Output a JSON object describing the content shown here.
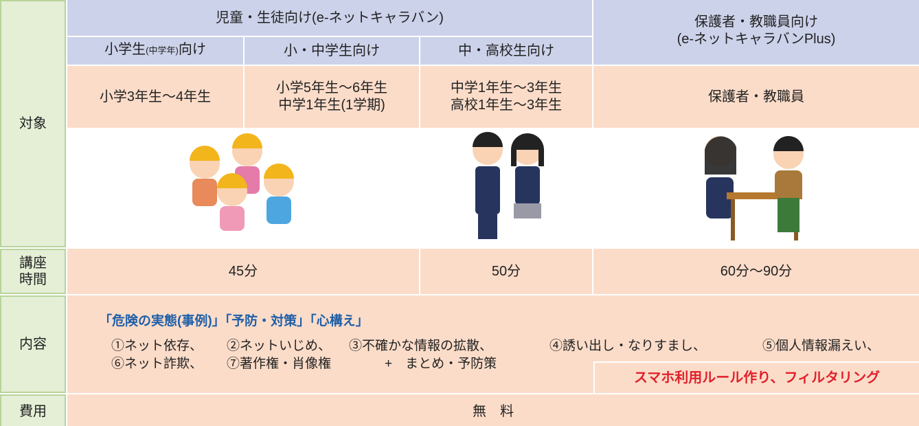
{
  "row_labels": {
    "target": "対象",
    "duration": [
      "講座",
      "時間"
    ],
    "content": "内容",
    "cost": "費用"
  },
  "header": {
    "children_group": "児童・生徒向け(e-ネットキャラバン)",
    "parents_group": [
      "保護者・教職員向け",
      "(e-ネットキャラバンPlus)"
    ],
    "sub": [
      [
        "小学生",
        "(中学年)",
        "向け"
      ],
      [
        "小・中学生向け"
      ],
      [
        "中・高校生向け"
      ]
    ]
  },
  "targets": [
    [
      "小学3年生～4年生"
    ],
    [
      "小学5年生～6年生",
      "中学1年生(1学期)"
    ],
    [
      "中学1年生～3年生",
      "高校1年生～3年生"
    ],
    [
      "保護者・教職員"
    ]
  ],
  "durations": [
    "45分",
    "50分",
    "60分～90分"
  ],
  "content": {
    "heading": "「危険の実態(事例)」「予防・対策」「心構え」",
    "items": [
      "①ネット依存、",
      "②ネットいじめ、",
      "③不確かな情報の拡散、",
      "④誘い出し・なりすまし、",
      "⑤個人情報漏えい、",
      "⑥ネット詐欺、",
      "⑦著作権・肖像権"
    ],
    "summary": "+　まとめ・予防策",
    "parents_extra": "スマホ利用ルール作り、フィルタリング"
  },
  "cost": "無　料"
}
